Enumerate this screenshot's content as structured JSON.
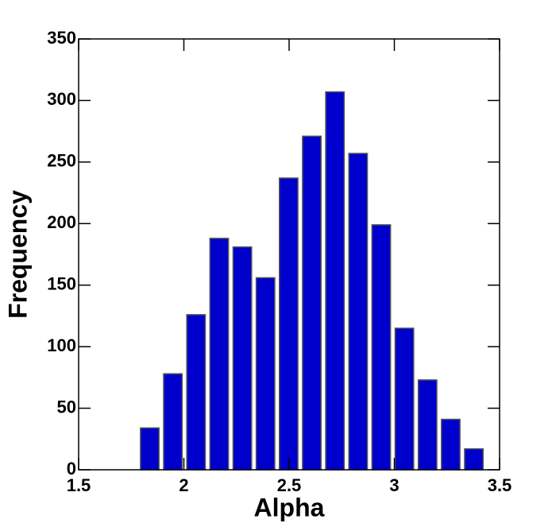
{
  "chart_data": {
    "type": "histogram",
    "xlabel": "Alpha",
    "ylabel": "Frequency",
    "bins": [
      1.79,
      1.9,
      2.01,
      2.12,
      2.23,
      2.34,
      2.45,
      2.56,
      2.67,
      2.78,
      2.89,
      3.0,
      3.11,
      3.22,
      3.33,
      3.44
    ],
    "values": [
      34,
      78,
      126,
      188,
      181,
      156,
      237,
      271,
      307,
      257,
      199,
      115,
      73,
      41,
      17
    ],
    "color": "#0000cc",
    "xlim": [
      1.5,
      3.5
    ],
    "xticks": [
      1.5,
      2,
      2.5,
      3,
      3.5
    ],
    "ylim": [
      0,
      350
    ],
    "yticks": [
      0,
      50,
      100,
      150,
      200,
      250,
      300,
      350
    ]
  }
}
